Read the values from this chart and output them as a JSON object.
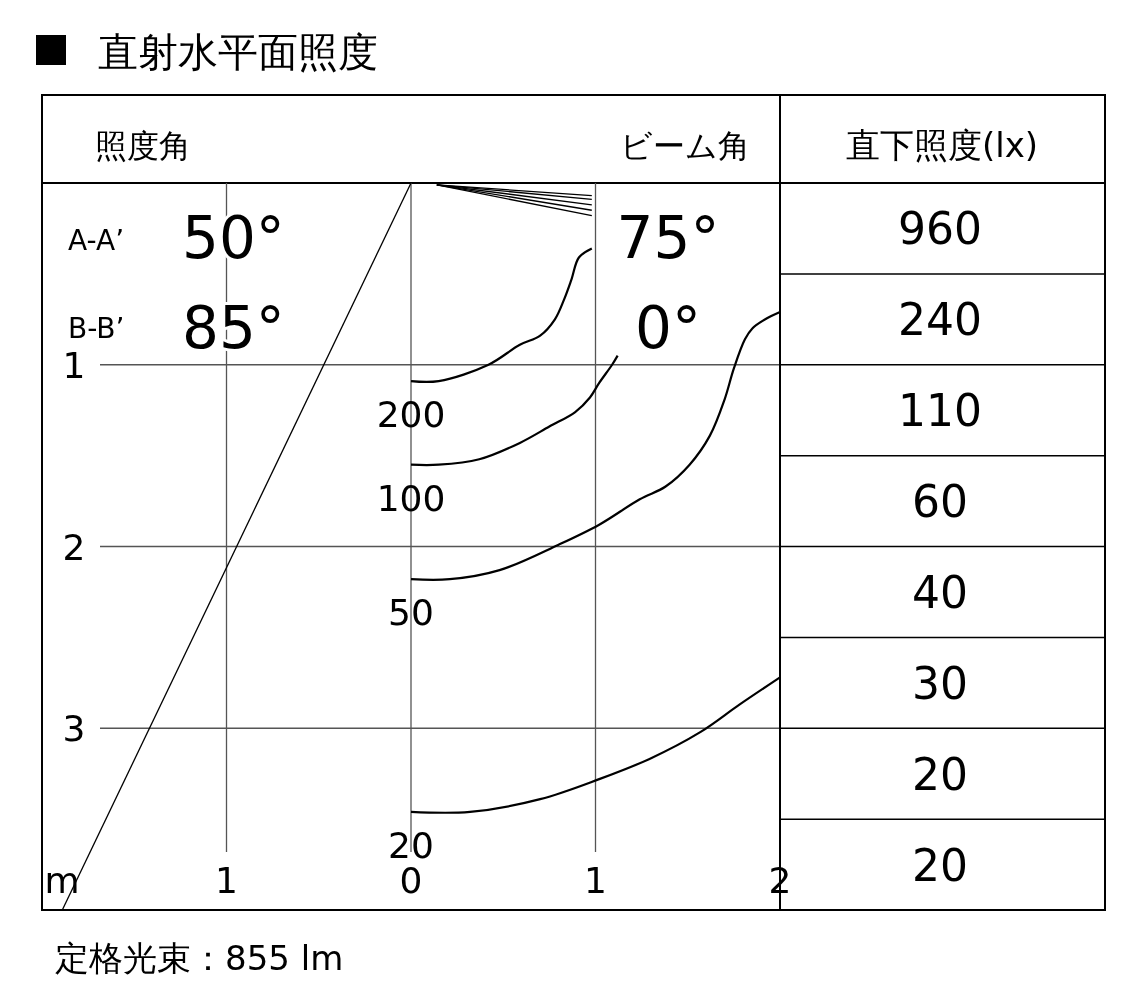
{
  "chart_data": [
    {
      "type": "line",
      "title": "直射水平面照度",
      "xlabel": "m",
      "xlim": [
        -2,
        2
      ],
      "ylim": [
        4,
        0
      ],
      "xticks": [
        {
          "value": -1,
          "label": "1"
        },
        0,
        1,
        2
      ],
      "yticks": [
        1,
        2,
        3
      ],
      "grid": true,
      "marker": "none",
      "line_style": "solid",
      "series": [
        {
          "name": "200",
          "color": "#000000",
          "x": [
            0,
            0.15,
            0.42,
            0.59,
            0.7,
            0.78,
            0.83,
            0.87,
            0.91,
            0.98
          ],
          "values": [
            1.09,
            1.09,
            1.0,
            0.89,
            0.84,
            0.75,
            0.64,
            0.53,
            0.41,
            0.36
          ]
        },
        {
          "name": "100",
          "color": "#000000",
          "x": [
            0,
            0.15,
            0.37,
            0.59,
            0.75,
            0.89,
            0.97,
            1.02,
            1.09,
            1.12
          ],
          "values": [
            1.55,
            1.55,
            1.52,
            1.43,
            1.34,
            1.26,
            1.18,
            1.1,
            1.0,
            0.95
          ]
        },
        {
          "name": "50",
          "color": "#000000",
          "x": [
            0,
            0.21,
            0.48,
            0.8,
            1.02,
            1.24,
            1.38,
            1.51,
            1.62,
            1.7,
            1.75,
            1.81,
            1.85,
            1.92,
            2.0
          ],
          "values": [
            2.18,
            2.18,
            2.13,
            1.99,
            1.88,
            1.74,
            1.67,
            1.55,
            1.39,
            1.19,
            1.02,
            0.86,
            0.8,
            0.75,
            0.71
          ]
        },
        {
          "name": "20",
          "color": "#000000",
          "x": [
            0,
            0.32,
            0.7,
            1.02,
            1.29,
            1.57,
            1.78,
            2.0
          ],
          "values": [
            3.46,
            3.46,
            3.39,
            3.28,
            3.17,
            3.02,
            2.87,
            2.72
          ]
        },
        {
          "color": "#000000",
          "x": [
            0,
            -1.89
          ],
          "values": [
            0,
            4.0
          ]
        },
        {
          "color": "#000000",
          "x": [
            0.14,
            0.98
          ],
          "values": [
            0.01,
            0.07
          ]
        },
        {
          "color": "#000000",
          "x": [
            0.14,
            0.98
          ],
          "values": [
            0.01,
            0.09
          ]
        },
        {
          "color": "#000000",
          "x": [
            0.14,
            0.98
          ],
          "values": [
            0.01,
            0.12
          ]
        },
        {
          "color": "#000000",
          "x": [
            0.14,
            0.98
          ],
          "values": [
            0.01,
            0.15
          ]
        },
        {
          "color": "#000000",
          "x": [
            0.14,
            0.98
          ],
          "values": [
            0.01,
            0.18
          ]
        }
      ],
      "annotations": [
        "照度角",
        "ビーム角",
        "A-A’",
        "50°",
        "B-B’",
        "85°",
        "75°",
        "0°",
        "定格光束：855 lm"
      ]
    },
    {
      "type": "other",
      "title": "直下照度(lx)",
      "values": [
        960,
        240,
        110,
        60,
        40,
        30,
        20,
        20
      ],
      "data_labels": true
    }
  ]
}
